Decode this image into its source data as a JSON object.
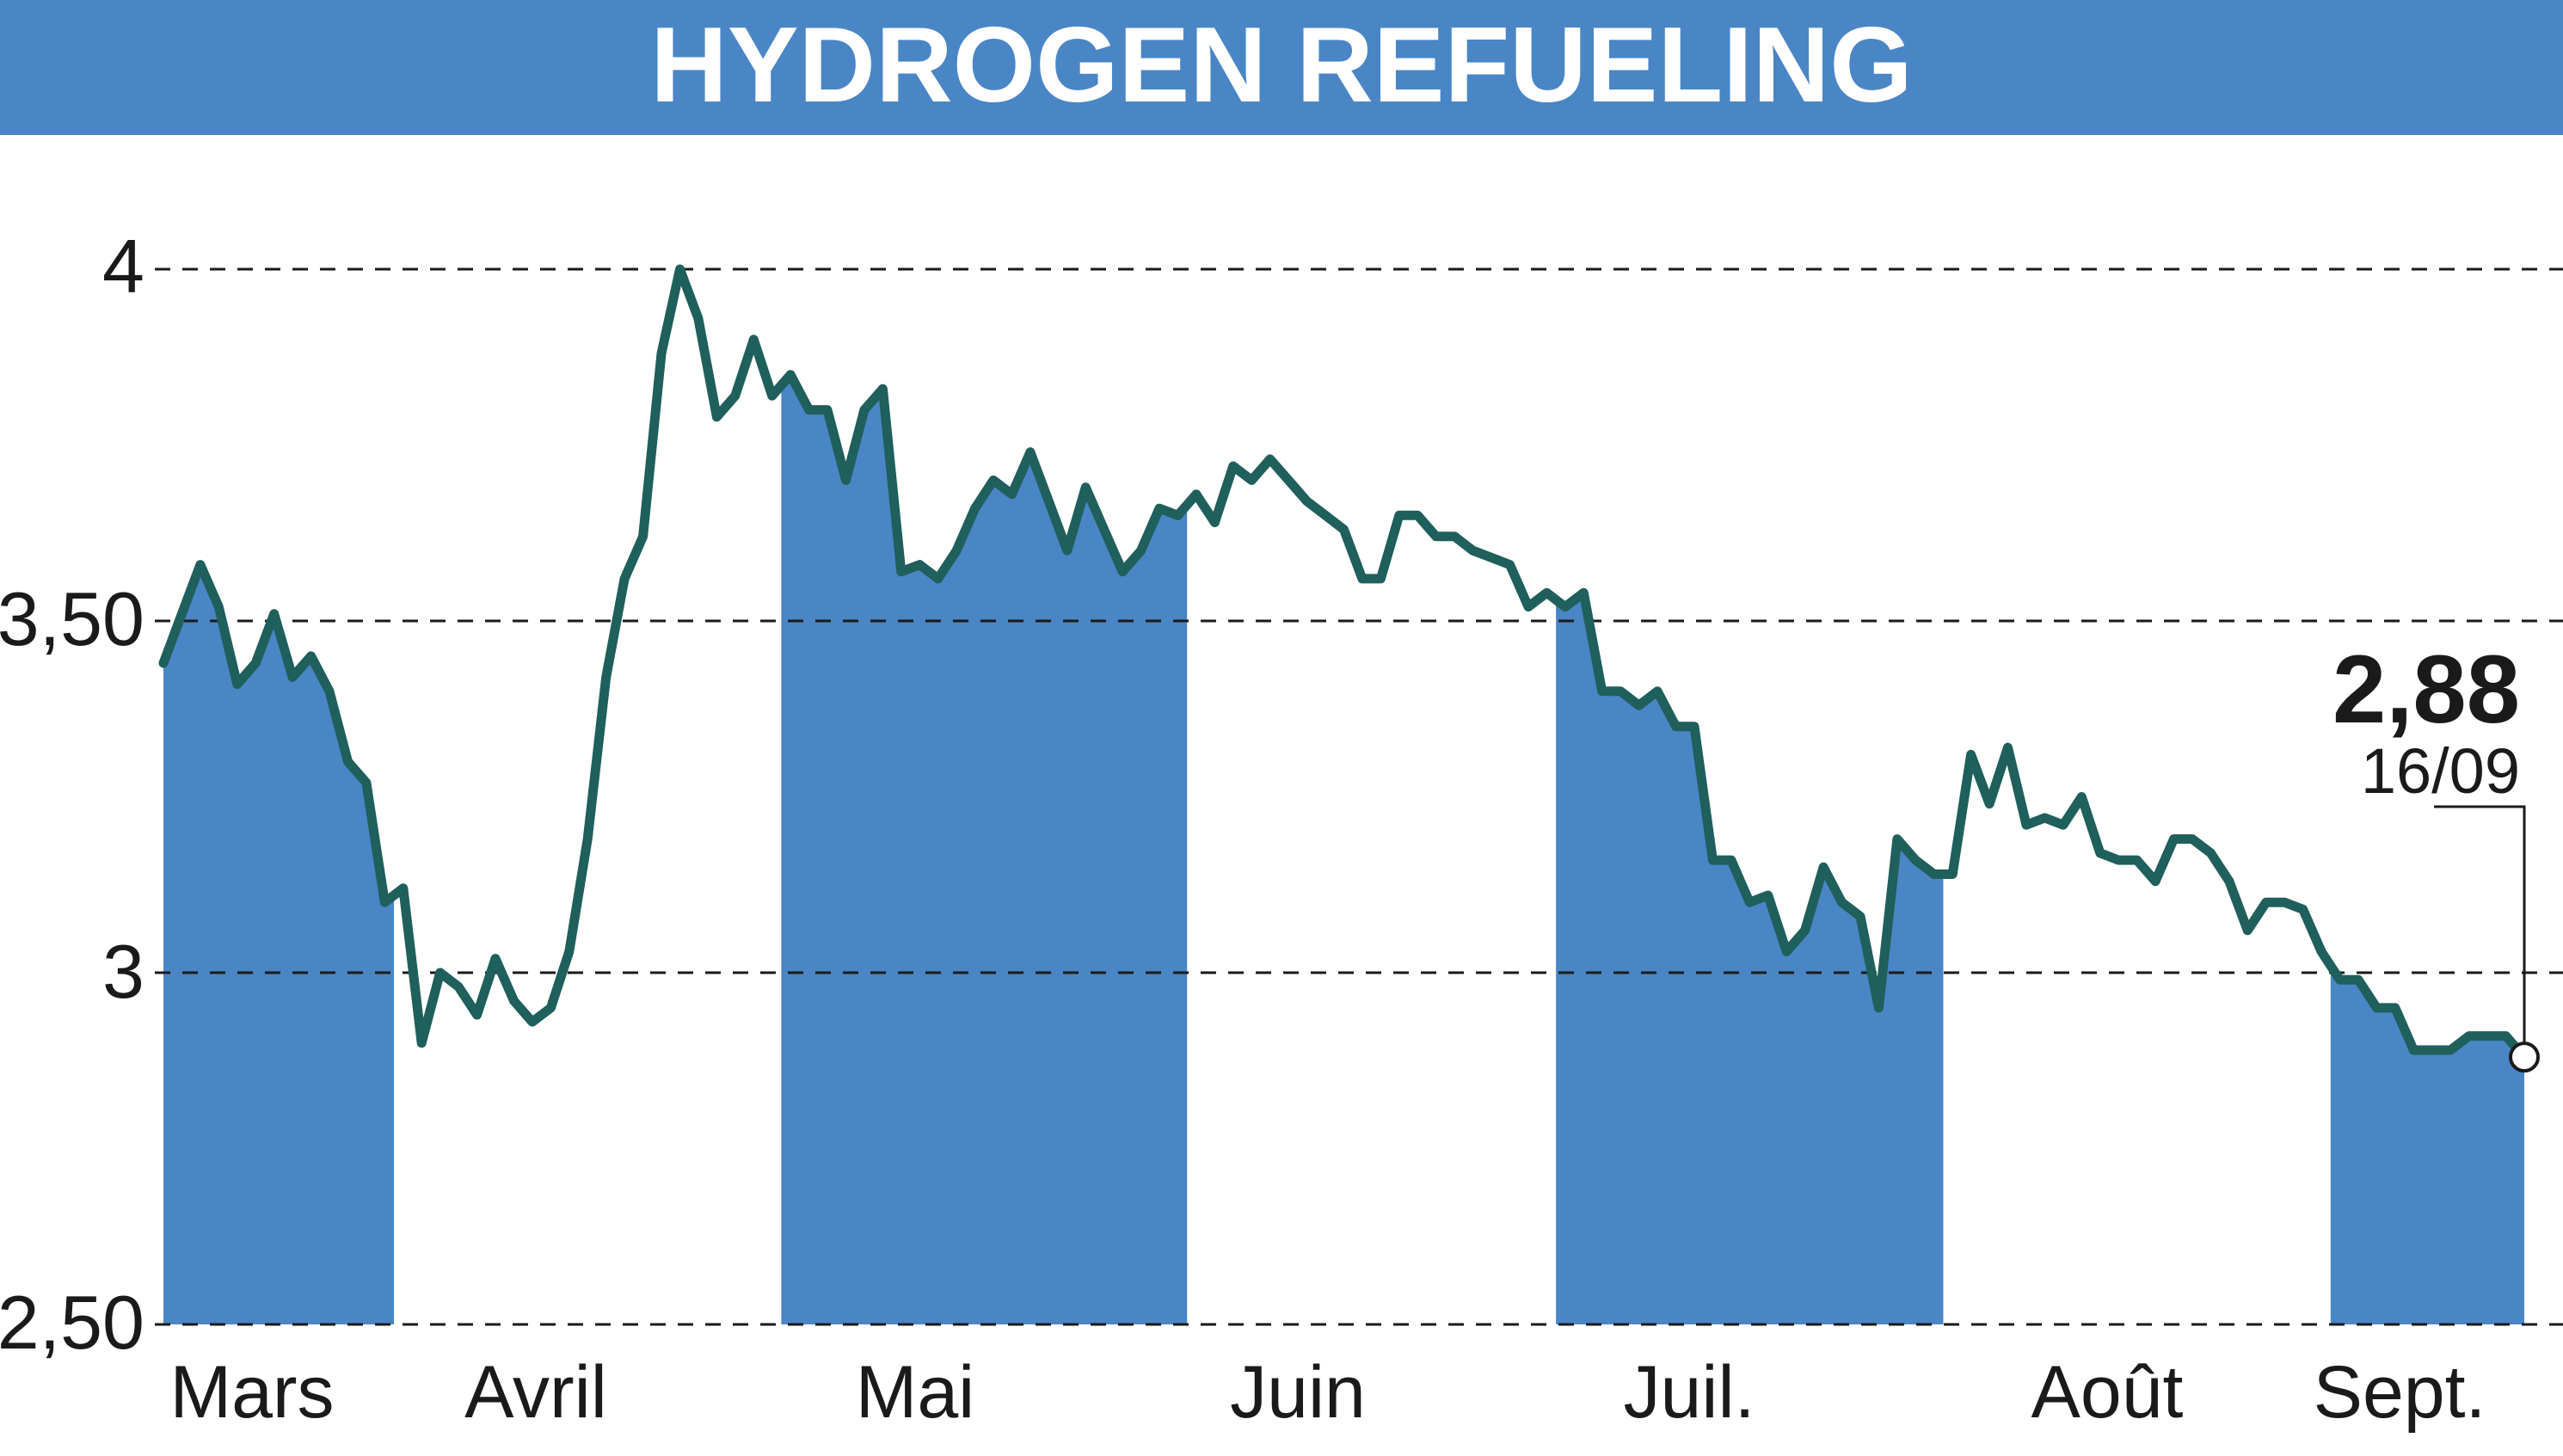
{
  "chart_data": {
    "type": "line",
    "title": "HYDROGEN REFUELING",
    "xlabel": "",
    "ylabel": "",
    "ylim": [
      2.5,
      4.0
    ],
    "y_ticks": [
      4,
      3.5,
      3,
      2.5
    ],
    "y_tick_labels": [
      "4",
      "3,50",
      "3",
      "2,50"
    ],
    "grid": "horizontal dashed",
    "month_labels": [
      "Mars",
      "Avril",
      "Mai",
      "Juin",
      "Juil.",
      "Août",
      "Sept."
    ],
    "shaded_months": [
      "Mars",
      "Mai",
      "Juil.",
      "Sept."
    ],
    "last_value_label": "2,88",
    "last_date_label": "16/09",
    "series": [
      {
        "values": [
          3.44,
          3.51,
          3.58,
          3.52,
          3.41,
          3.44,
          3.51,
          3.42,
          3.45,
          3.4,
          3.3,
          3.27,
          3.1,
          3.12,
          2.9,
          3.0,
          2.98,
          2.94,
          3.02,
          2.96,
          2.93,
          2.95,
          3.03,
          3.19,
          3.42,
          3.56,
          3.62,
          3.88,
          4.0,
          3.93,
          3.79,
          3.82,
          3.9,
          3.82,
          3.85,
          3.8,
          3.8,
          3.7,
          3.8,
          3.83,
          3.57,
          3.58,
          3.56,
          3.6,
          3.66,
          3.7,
          3.68,
          3.74,
          3.67,
          3.6,
          3.69,
          3.63,
          3.57,
          3.6,
          3.66,
          3.65,
          3.68,
          3.64,
          3.72,
          3.7,
          3.73,
          3.7,
          3.67,
          3.65,
          3.63,
          3.56,
          3.56,
          3.65,
          3.65,
          3.62,
          3.62,
          3.6,
          3.59,
          3.58,
          3.52,
          3.54,
          3.52,
          3.54,
          3.4,
          3.4,
          3.38,
          3.4,
          3.35,
          3.35,
          3.16,
          3.16,
          3.1,
          3.11,
          3.03,
          3.06,
          3.15,
          3.1,
          3.08,
          2.95,
          3.19,
          3.16,
          3.14,
          3.14,
          3.31,
          3.24,
          3.32,
          3.21,
          3.22,
          3.21,
          3.25,
          3.17,
          3.16,
          3.16,
          3.13,
          3.19,
          3.19,
          3.17,
          3.13,
          3.06,
          3.1,
          3.1,
          3.09,
          3.03,
          2.99,
          2.99,
          2.95,
          2.95,
          2.89,
          2.89,
          2.89,
          2.91,
          2.91,
          2.91,
          2.88
        ]
      }
    ]
  }
}
